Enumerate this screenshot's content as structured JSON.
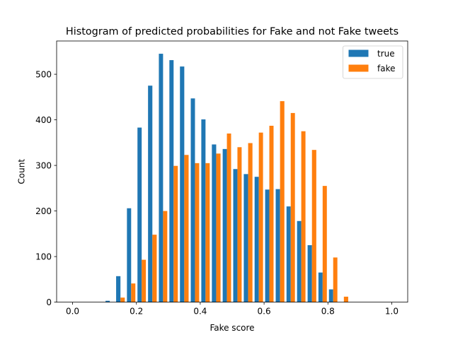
{
  "chart_data": {
    "type": "bar",
    "title": "Histogram of predicted probabilities for Fake and not Fake tweets",
    "xlabel": "Fake score",
    "ylabel": "Count",
    "xlim": [
      -0.05,
      1.05
    ],
    "ylim": [
      0,
      573
    ],
    "x_ticks": [
      0.0,
      0.2,
      0.4,
      0.6,
      0.8,
      1.0
    ],
    "x_tick_labels": [
      "0.0",
      "0.2",
      "0.4",
      "0.6",
      "0.8",
      "1.0"
    ],
    "y_ticks": [
      0,
      100,
      200,
      300,
      400,
      500
    ],
    "y_tick_labels": [
      "0",
      "100",
      "200",
      "300",
      "400",
      "500"
    ],
    "bin_edges": [
      0.0,
      0.033,
      0.067,
      0.1,
      0.133,
      0.167,
      0.2,
      0.233,
      0.267,
      0.3,
      0.333,
      0.367,
      0.4,
      0.433,
      0.467,
      0.5,
      0.533,
      0.567,
      0.6,
      0.633,
      0.667,
      0.7,
      0.733,
      0.767,
      0.8,
      0.833,
      0.867,
      0.9,
      0.933,
      0.967,
      1.0
    ],
    "series": [
      {
        "name": "true",
        "color": "#1f77b4",
        "values": [
          0,
          0,
          0,
          3,
          57,
          206,
          383,
          475,
          545,
          531,
          517,
          447,
          401,
          346,
          336,
          292,
          281,
          275,
          247,
          248,
          210,
          178,
          125,
          65,
          28,
          0,
          0,
          0,
          0,
          0
        ]
      },
      {
        "name": "fake",
        "color": "#ff7f0e",
        "values": [
          0,
          0,
          0,
          0,
          10,
          41,
          93,
          148,
          200,
          299,
          323,
          305,
          305,
          326,
          370,
          340,
          349,
          372,
          387,
          441,
          415,
          375,
          334,
          255,
          98,
          12,
          0,
          0,
          0,
          0
        ]
      }
    ],
    "legend_position": "top-right",
    "grid": false
  }
}
